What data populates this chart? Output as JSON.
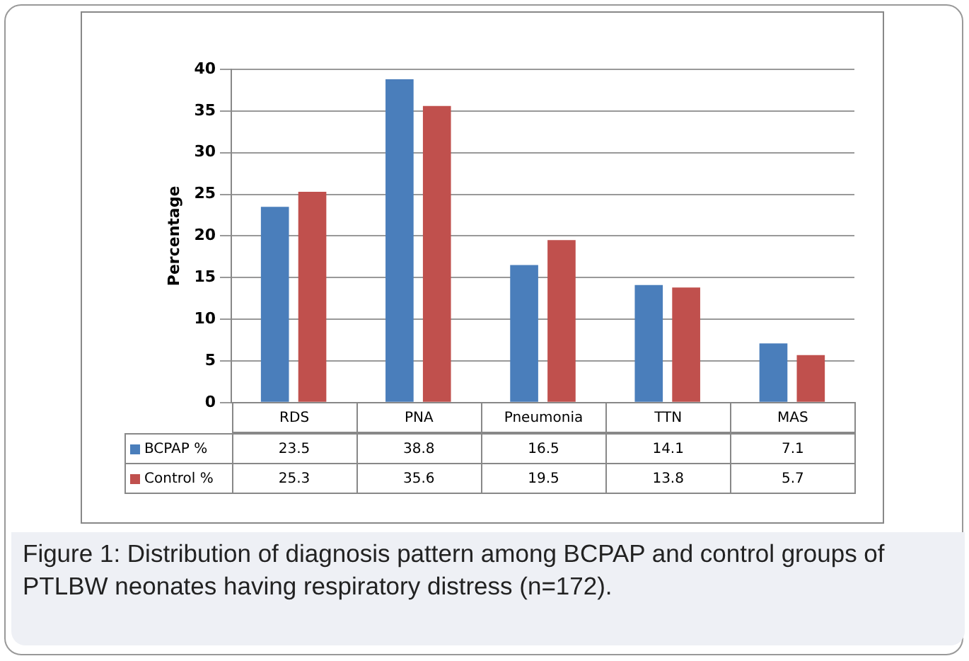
{
  "chart_data": {
    "type": "bar",
    "ylabel": "Percentage",
    "categories": [
      "RDS",
      "PNA",
      "Pneumonia",
      "TTN",
      "MAS"
    ],
    "series": [
      {
        "name": "BCPAP %",
        "color": "#4a7ebb",
        "values": [
          23.5,
          38.8,
          16.5,
          14.1,
          7.1
        ]
      },
      {
        "name": "Control %",
        "color": "#c0504d",
        "values": [
          25.3,
          35.6,
          19.5,
          13.8,
          5.7
        ]
      }
    ],
    "ylim": [
      0,
      40
    ],
    "yticks": [
      0,
      5,
      10,
      15,
      20,
      25,
      30,
      35,
      40
    ],
    "grid": "y",
    "legend": "bottom",
    "data_labels": true,
    "annotations": [
      "Figure 1: Distribution of diagnosis pattern among BCPAP and control groups of PTLBW neonates having respiratory distress (n=172)."
    ]
  }
}
